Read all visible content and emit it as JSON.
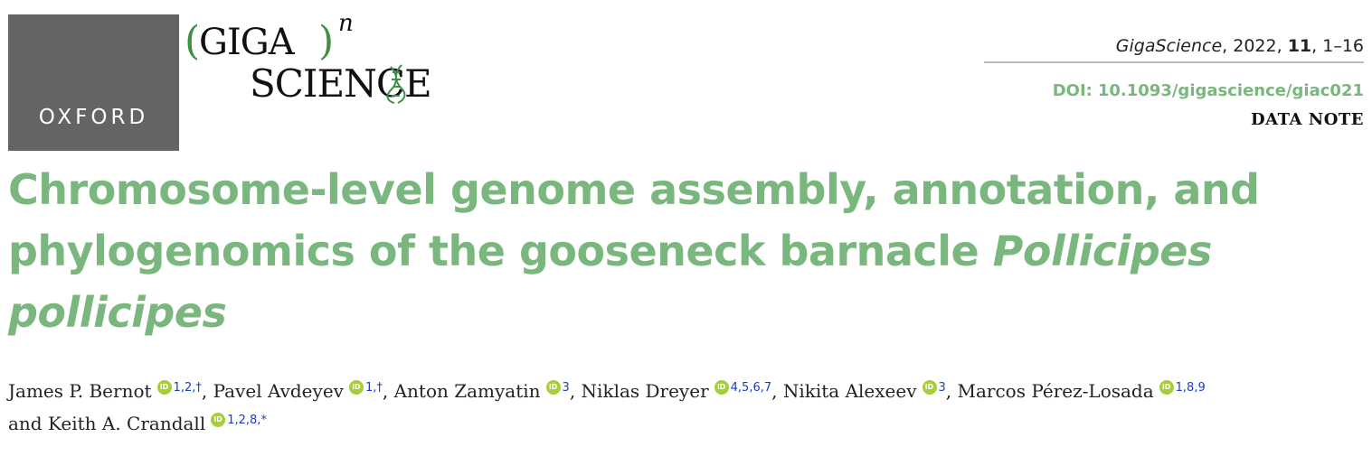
{
  "header": {
    "publisher": "OXFORD",
    "journal_logo": {
      "open_paren": "(",
      "giga": "GIGA",
      "close_paren": ")",
      "exponent": "n",
      "science": "SCIENCE"
    },
    "journal_name": "GigaScience",
    "year": "2022",
    "volume": "11",
    "pages": "1–16",
    "doi_label": "DOI:",
    "doi": "10.1093/gigascience/giac021",
    "article_type": "DATA NOTE"
  },
  "title": {
    "text": "Chromosome-level genome assembly, annotation, and phylogenomics of the gooseneck barnacle ",
    "species": "Pollicipes pollicipes"
  },
  "authors": [
    {
      "name": "James P. Bernot",
      "affiliations": "1,2,†",
      "separator": ", "
    },
    {
      "name": "Pavel Avdeyev",
      "affiliations": "1,†",
      "separator": ", "
    },
    {
      "name": "Anton Zamyatin",
      "affiliations": "3",
      "separator": ", "
    },
    {
      "name": "Niklas Dreyer",
      "affiliations": "4,5,6,7",
      "separator": ", "
    },
    {
      "name": "Nikita Alexeev",
      "affiliations": "3",
      "separator": ", "
    },
    {
      "name": "Marcos Pérez-Losada",
      "affiliations": "1,8,9",
      "separator": " and "
    },
    {
      "name": "Keith A. Crandall",
      "affiliations": "1,2,8,*",
      "separator": ""
    }
  ],
  "orcid_icon": {
    "name": "orcid-icon",
    "label": "iD",
    "color": "#a6ce39"
  },
  "colors": {
    "accent": "#7ab77e",
    "affiliation_link": "#1a3ccc",
    "publisher_block": "#646464"
  }
}
